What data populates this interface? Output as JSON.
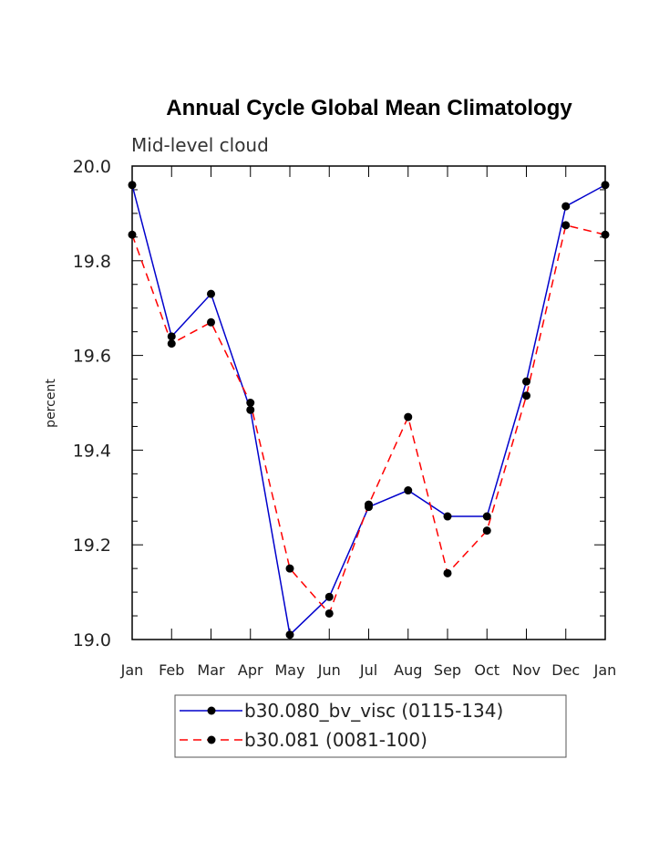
{
  "chart_data": {
    "type": "line",
    "title": "Annual Cycle Global Mean Climatology",
    "subtitle": "Mid-level cloud",
    "ylabel": "percent",
    "xlabel": "",
    "categories": [
      "Jan",
      "Feb",
      "Mar",
      "Apr",
      "May",
      "Jun",
      "Jul",
      "Aug",
      "Sep",
      "Oct",
      "Nov",
      "Dec",
      "Jan"
    ],
    "ylim": [
      19.0,
      20.0
    ],
    "yticks": [
      "19.0",
      "19.2",
      "19.4",
      "19.6",
      "19.8",
      "20.0"
    ],
    "grid": false,
    "legend_position": "bottom",
    "series": [
      {
        "name": "b30.080_bv_visc (0115-134)",
        "color": "#0000cc",
        "dash": "solid",
        "values": [
          19.96,
          19.64,
          19.73,
          19.485,
          19.01,
          19.09,
          19.28,
          19.315,
          19.26,
          19.26,
          19.545,
          19.915,
          19.96
        ]
      },
      {
        "name": "b30.081 (0081-100)",
        "color": "#ff0000",
        "dash": "dashed",
        "values": [
          19.855,
          19.625,
          19.67,
          19.5,
          19.15,
          19.055,
          19.285,
          19.47,
          19.14,
          19.23,
          19.515,
          19.875,
          19.855
        ]
      }
    ]
  }
}
